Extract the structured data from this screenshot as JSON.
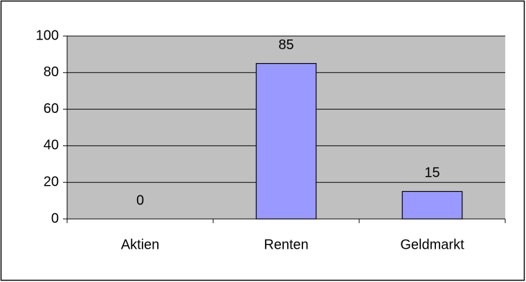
{
  "chart_data": {
    "type": "bar",
    "categories": [
      "Aktien",
      "Renten",
      "Geldmarkt"
    ],
    "values": [
      0,
      85,
      15
    ],
    "color": "#9999ff",
    "ylim": [
      0,
      100
    ],
    "yticks": [
      0,
      20,
      40,
      60,
      80,
      100
    ],
    "grid": true
  }
}
